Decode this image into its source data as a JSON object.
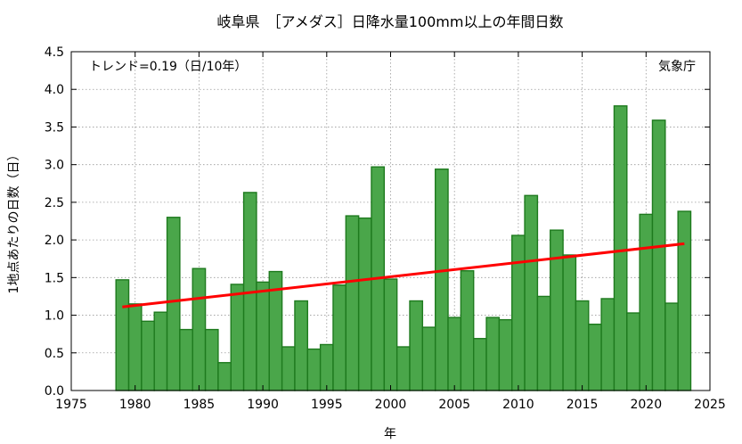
{
  "chart_data": {
    "type": "bar",
    "title": "岐阜県　［アメダス］日降水量100mm以上の年間日数",
    "xlabel": "年",
    "ylabel": "1地点あたりの日数（日）",
    "trend_text": "トレンド=0.19（日/10年）",
    "source_text": "気象庁",
    "xlim": [
      1975,
      2025
    ],
    "ylim": [
      0,
      4.5
    ],
    "xticks": [
      1975,
      1980,
      1985,
      1990,
      1995,
      2000,
      2005,
      2010,
      2015,
      2020,
      2025
    ],
    "yticks": [
      0.0,
      0.5,
      1.0,
      1.5,
      2.0,
      2.5,
      3.0,
      3.5,
      4.0,
      4.5
    ],
    "ytick_labels": [
      "0.0",
      "0.5",
      "1.0",
      "1.5",
      "2.0",
      "2.5",
      "3.0",
      "3.5",
      "4.0",
      "4.5"
    ],
    "grid": true,
    "years": [
      1979,
      1980,
      1981,
      1982,
      1983,
      1984,
      1985,
      1986,
      1987,
      1988,
      1989,
      1990,
      1991,
      1992,
      1993,
      1994,
      1995,
      1996,
      1997,
      1998,
      1999,
      2000,
      2001,
      2002,
      2003,
      2004,
      2005,
      2006,
      2007,
      2008,
      2009,
      2010,
      2011,
      2012,
      2013,
      2014,
      2015,
      2016,
      2017,
      2018,
      2019,
      2020,
      2021,
      2022,
      2023
    ],
    "values": [
      1.47,
      1.15,
      0.92,
      1.04,
      2.3,
      0.81,
      1.62,
      0.81,
      0.37,
      1.41,
      2.63,
      1.44,
      1.58,
      0.58,
      1.19,
      0.55,
      0.61,
      1.4,
      2.32,
      2.29,
      2.97,
      1.48,
      0.58,
      1.19,
      0.84,
      2.94,
      0.97,
      1.59,
      0.69,
      0.97,
      0.94,
      2.06,
      2.59,
      1.25,
      2.13,
      1.8,
      1.19,
      0.88,
      1.22,
      3.78,
      1.03,
      2.34,
      3.59,
      1.16,
      2.38
    ],
    "trend": {
      "x": [
        1979,
        2023
      ],
      "y": [
        1.11,
        1.95
      ]
    },
    "colors": {
      "bar_fill": "#4aa64a",
      "bar_stroke": "#1e7a1e",
      "trend": "#ff0000",
      "grid": "#999999"
    }
  }
}
